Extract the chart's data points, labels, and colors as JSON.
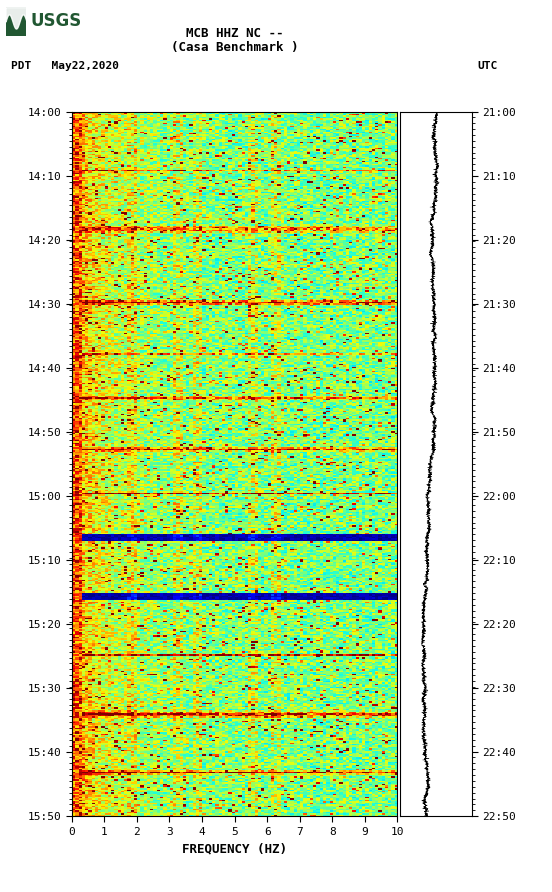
{
  "title_line1": "MCB HHZ NC --",
  "title_line2": "(Casa Benchmark )",
  "left_label": "PDT   May22,2020",
  "right_label": "UTC",
  "freq_label": "FREQUENCY (HZ)",
  "freq_min": 0,
  "freq_max": 10,
  "freq_ticks": [
    0,
    1,
    2,
    3,
    4,
    5,
    6,
    7,
    8,
    9,
    10
  ],
  "time_labels_left": [
    "14:00",
    "14:10",
    "14:20",
    "14:30",
    "14:40",
    "14:50",
    "15:00",
    "15:10",
    "15:20",
    "15:30",
    "15:40",
    "15:50"
  ],
  "time_labels_right": [
    "21:00",
    "21:10",
    "21:20",
    "21:30",
    "21:40",
    "21:50",
    "22:00",
    "22:10",
    "22:20",
    "22:30",
    "22:40",
    "22:50"
  ],
  "bg_color": "#ffffff",
  "spectrogram_cmap": "jet",
  "n_freq_bins": 100,
  "n_time_bins": 480,
  "seed": 7,
  "usgs_green": "#215732",
  "tick_label_fontsize": 8,
  "axis_label_fontsize": 9,
  "title_fontsize": 9,
  "vline_freq_bins": [
    18,
    32,
    38,
    55,
    62
  ],
  "event_rows": [
    40,
    80,
    130,
    165,
    195,
    230,
    260,
    290,
    330,
    370,
    410,
    450
  ],
  "dark_event_rows": [
    290,
    330
  ]
}
